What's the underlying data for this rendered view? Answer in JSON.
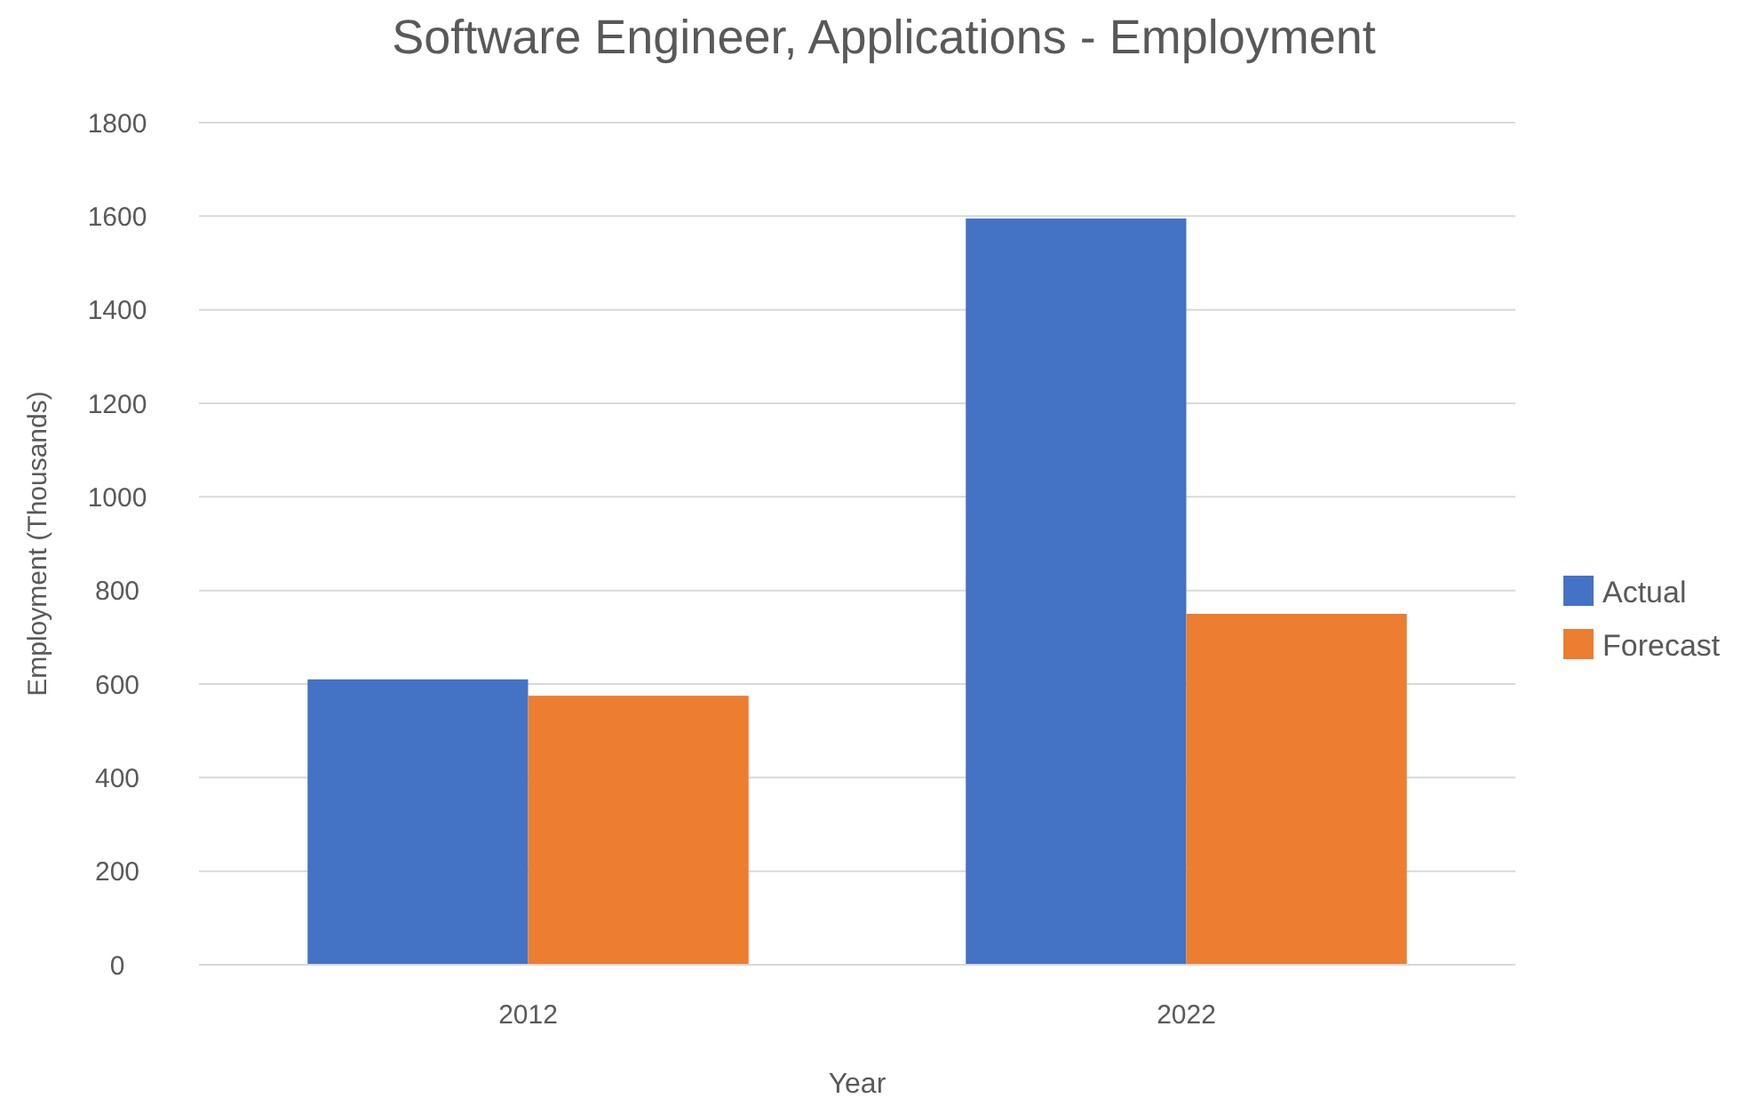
{
  "chart_data": {
    "type": "bar",
    "title": "Software Engineer, Applications - Employment",
    "xlabel": "Year",
    "ylabel": "Employment (Thousands)",
    "categories": [
      "2012",
      "2022"
    ],
    "series": [
      {
        "name": "Actual",
        "color": "#4472c4",
        "values": [
          610,
          1595
        ]
      },
      {
        "name": "Forecast",
        "color": "#ed7d31",
        "values": [
          575,
          750
        ]
      }
    ],
    "ylim": [
      0,
      1800
    ],
    "yticks": [
      0,
      200,
      400,
      600,
      800,
      1000,
      1200,
      1400,
      1600,
      1800
    ],
    "grid": "y",
    "legend": "right"
  }
}
